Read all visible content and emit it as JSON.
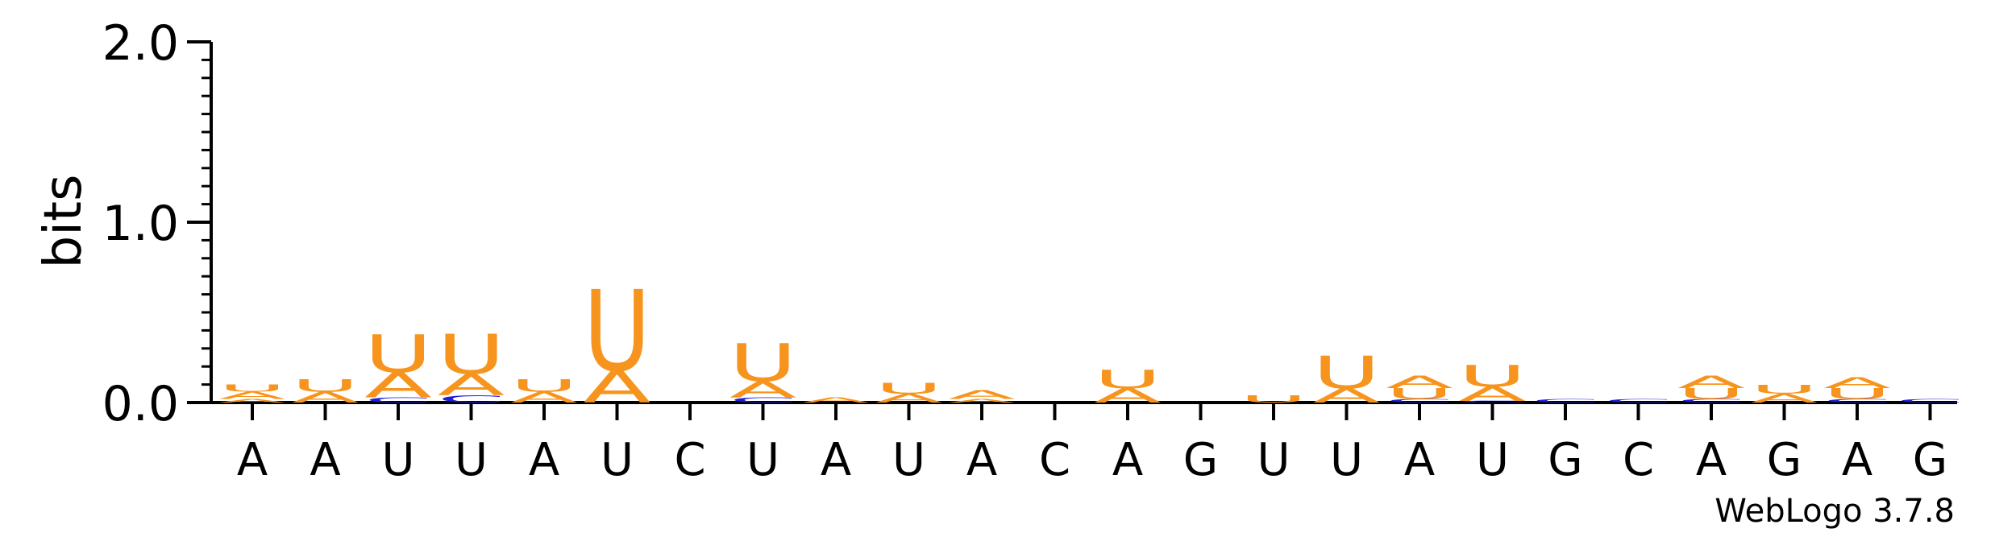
{
  "chart_data": {
    "type": "sequence-logo",
    "ylabel": "bits",
    "ylim": [
      0,
      2.0
    ],
    "yticks": [
      {
        "value": 0.0,
        "label": "0.0"
      },
      {
        "value": 1.0,
        "label": "1.0"
      },
      {
        "value": 2.0,
        "label": "2.0"
      }
    ],
    "categories": [
      "A",
      "A",
      "U",
      "U",
      "A",
      "U",
      "C",
      "U",
      "A",
      "U",
      "A",
      "C",
      "A",
      "G",
      "U",
      "U",
      "A",
      "U",
      "G",
      "C",
      "A",
      "G",
      "A",
      "G"
    ],
    "colors": {
      "A": "#f7941d",
      "U": "#f7941d",
      "C": "#1d1dd8",
      "G": "#f7941d"
    },
    "stacks": [
      [
        {
          "letter": "A",
          "value": 0.02
        },
        {
          "letter": "A",
          "value": 0.04
        },
        {
          "letter": "U",
          "value": 0.04
        }
      ],
      [
        {
          "letter": "A",
          "value": 0.06
        },
        {
          "letter": "U",
          "value": 0.07
        }
      ],
      [
        {
          "letter": "C",
          "value": 0.03
        },
        {
          "letter": "A",
          "value": 0.14
        },
        {
          "letter": "U",
          "value": 0.21
        }
      ],
      [
        {
          "letter": "C",
          "value": 0.04
        },
        {
          "letter": "A",
          "value": 0.12
        },
        {
          "letter": "U",
          "value": 0.22
        }
      ],
      [
        {
          "letter": "A",
          "value": 0.06
        },
        {
          "letter": "U",
          "value": 0.07
        }
      ],
      [
        {
          "letter": "A",
          "value": 0.18
        },
        {
          "letter": "U",
          "value": 0.45
        }
      ],
      [],
      [
        {
          "letter": "C",
          "value": 0.03
        },
        {
          "letter": "A",
          "value": 0.09
        },
        {
          "letter": "U",
          "value": 0.21
        }
      ],
      [
        {
          "letter": "A",
          "value": 0.03
        }
      ],
      [
        {
          "letter": "A",
          "value": 0.05
        },
        {
          "letter": "U",
          "value": 0.06
        }
      ],
      [
        {
          "letter": "A",
          "value": 0.02
        },
        {
          "letter": "A",
          "value": 0.05
        }
      ],
      [],
      [
        {
          "letter": "A",
          "value": 0.08
        },
        {
          "letter": "U",
          "value": 0.1
        }
      ],
      [],
      [
        {
          "letter": "U",
          "value": 0.04
        }
      ],
      [
        {
          "letter": "A",
          "value": 0.08
        },
        {
          "letter": "U",
          "value": 0.18
        }
      ],
      [
        {
          "letter": "C",
          "value": 0.02
        },
        {
          "letter": "U",
          "value": 0.06
        },
        {
          "letter": "A",
          "value": 0.07
        }
      ],
      [
        {
          "letter": "C",
          "value": 0.01
        },
        {
          "letter": "A",
          "value": 0.08
        },
        {
          "letter": "U",
          "value": 0.12
        }
      ],
      [
        {
          "letter": "C",
          "value": 0.02
        }
      ],
      [
        {
          "letter": "C",
          "value": 0.02
        }
      ],
      [
        {
          "letter": "C",
          "value": 0.02
        },
        {
          "letter": "U",
          "value": 0.06
        },
        {
          "letter": "A",
          "value": 0.07
        }
      ],
      [
        {
          "letter": "A",
          "value": 0.05
        },
        {
          "letter": "U",
          "value": 0.05
        }
      ],
      [
        {
          "letter": "C",
          "value": 0.02
        },
        {
          "letter": "U",
          "value": 0.06
        },
        {
          "letter": "A",
          "value": 0.06
        }
      ],
      [
        {
          "letter": "C",
          "value": 0.02
        }
      ]
    ],
    "footer": "WebLogo 3.7.8"
  }
}
